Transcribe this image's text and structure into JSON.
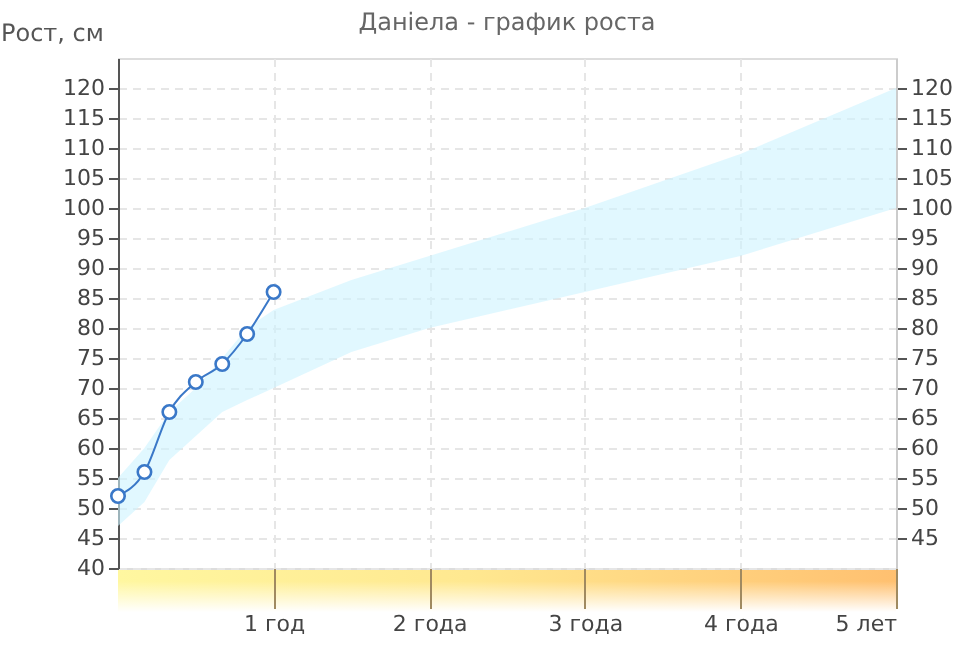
{
  "chart_data": {
    "type": "line",
    "title": "Даніела - график роста",
    "ylabel": "Рост, см",
    "x": [
      0,
      0.17,
      0.33,
      0.5,
      0.67,
      0.83,
      1,
      1.5,
      2,
      3,
      4,
      5
    ],
    "series": [
      {
        "color": "#3a78c8",
        "values": [
          52,
          56,
          66,
          71,
          74,
          79,
          86,
          null,
          null,
          null,
          null,
          null
        ],
        "lower": [
          47,
          51,
          58,
          62,
          66,
          68,
          70,
          76,
          80,
          86,
          92,
          100
        ],
        "upper": [
          55,
          60,
          66,
          70,
          75,
          80,
          83,
          88,
          92,
          100,
          109,
          120
        ]
      }
    ],
    "xlim": [
      0,
      5
    ],
    "xticks": [
      {
        "value": 1,
        "label": "1 год"
      },
      {
        "value": 2,
        "label": "2 года"
      },
      {
        "value": 3,
        "label": "3 года"
      },
      {
        "value": 4,
        "label": "4 года"
      },
      {
        "value": 5,
        "label": "5 лет"
      }
    ],
    "ylim": [
      40,
      125
    ],
    "yticks": [
      40,
      45,
      50,
      55,
      60,
      65,
      70,
      75,
      80,
      85,
      90,
      95,
      100,
      105,
      110,
      115,
      120
    ],
    "y2lim": [
      40,
      125
    ],
    "y2ticks": [
      45,
      50,
      55,
      60,
      65,
      70,
      75,
      80,
      85,
      90,
      95,
      100,
      105,
      110,
      115,
      120
    ],
    "grid": true,
    "marker": "circle"
  }
}
